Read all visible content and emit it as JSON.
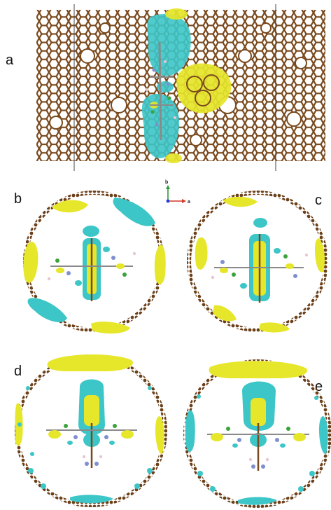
{
  "panels": [
    {
      "id": "a",
      "label": "a",
      "view": "side"
    },
    {
      "id": "b",
      "label": "b",
      "view": "cross-section"
    },
    {
      "id": "c",
      "label": "c",
      "view": "cross-section"
    },
    {
      "id": "d",
      "label": "d",
      "view": "cross-section"
    },
    {
      "id": "e",
      "label": "e",
      "view": "cross-section"
    }
  ],
  "axes_indicator": {
    "vertical": "b",
    "horizontal": "a"
  },
  "colors": {
    "tube": "#7a4a1e",
    "cyan_lobe": "#3cc6c8",
    "yellow_lobe": "#e6e62a",
    "molecule_gray": "#8a8a8a",
    "molecule_green": "#3aa33a",
    "molecule_blue": "#7f8fd0",
    "molecule_pink": "#e9c6cf",
    "axis_green": "#2f9a3a",
    "axis_red": "#d23a2a",
    "axis_blue": "#2a3ad2"
  }
}
